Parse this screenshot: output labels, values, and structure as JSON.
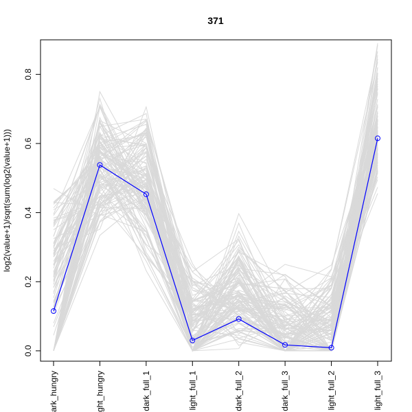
{
  "chart_data": {
    "type": "line",
    "title": "371",
    "xlabel": "",
    "ylabel": "log2(value+1)/sqrt(sum(log2(value+1)))",
    "categories": [
      "dark_hungry",
      "light_hungry",
      "dark_full_1",
      "light_full_1",
      "dark_full_2",
      "dark_full_3",
      "light_full_2",
      "light_full_3"
    ],
    "x_tick_labels": [
      "ark_hungry",
      "ght_hungry",
      "dark_full_1",
      "light_full_1",
      "dark_full_2",
      "dark_full_3",
      "light_full_2",
      "light_full_3"
    ],
    "y_ticks": [
      0.0,
      0.2,
      0.4,
      0.6,
      0.8
    ],
    "y_tick_labels": [
      "0.0",
      "0.2",
      "0.4",
      "0.6",
      "0.8"
    ],
    "ylim": [
      -0.03,
      0.9
    ],
    "grid": false,
    "series": [
      {
        "name": "",
        "color": "#0000ff",
        "marker": "open-circle",
        "values": [
          0.115,
          0.538,
          0.453,
          0.03,
          0.092,
          0.017,
          0.009,
          0.615
        ]
      }
    ],
    "background_series": {
      "color": "#d9d9d9",
      "count": 120,
      "low": [
        0.0,
        0.32,
        0.2,
        0.0,
        0.0,
        0.0,
        0.0,
        0.44
      ],
      "high": [
        0.48,
        0.77,
        0.74,
        0.27,
        0.41,
        0.28,
        0.27,
        0.9
      ],
      "typical": [
        0.28,
        0.52,
        0.47,
        0.12,
        0.16,
        0.09,
        0.1,
        0.62
      ]
    }
  }
}
